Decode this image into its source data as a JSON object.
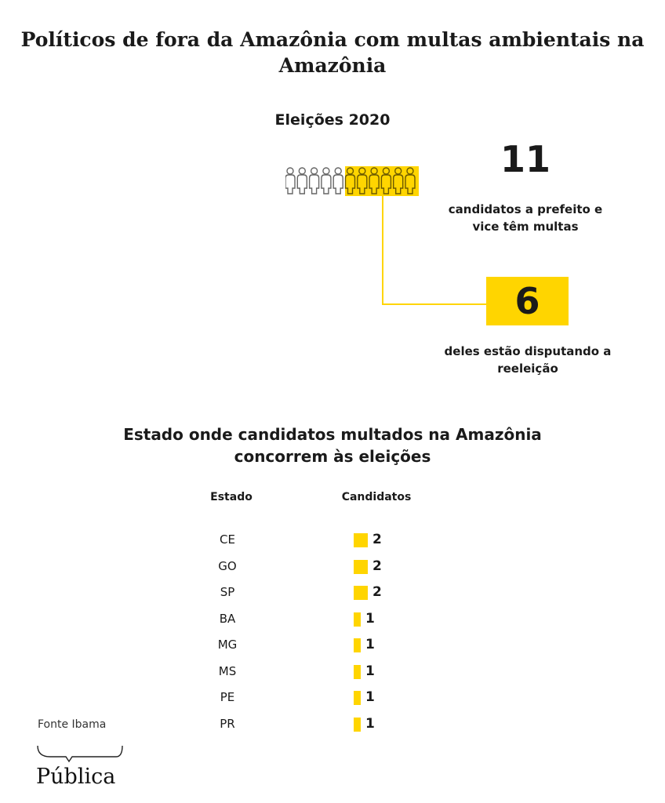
{
  "title": "Políticos de fora da Amazônia com multas ambientais na Amazônia",
  "subtitle_2020": "Eleições 2020",
  "total": "11",
  "total_text": "candidatos a prefeito e vice têm multas",
  "reelection": "6",
  "reelection_text": "deles estão disputando a reeleição",
  "highlight_color": "#ffd500",
  "people": {
    "total": 11,
    "highlighted": 6,
    "icon": "person-icon"
  },
  "table_title": "Estado onde candidatos multados na Amazônia concorrem às eleições",
  "source": "Fonte Ibama",
  "logo": "Pública",
  "chart_data": {
    "type": "bar",
    "headers": [
      "Estado",
      "Candidatos"
    ],
    "categories": [
      "CE",
      "GO",
      "SP",
      "BA",
      "MG",
      "MS",
      "PE",
      "PR"
    ],
    "values": [
      2,
      2,
      2,
      1,
      1,
      1,
      1,
      1
    ],
    "value_labels": [
      "2",
      "2",
      "2",
      "1",
      "1",
      "1",
      "1",
      "1"
    ]
  }
}
